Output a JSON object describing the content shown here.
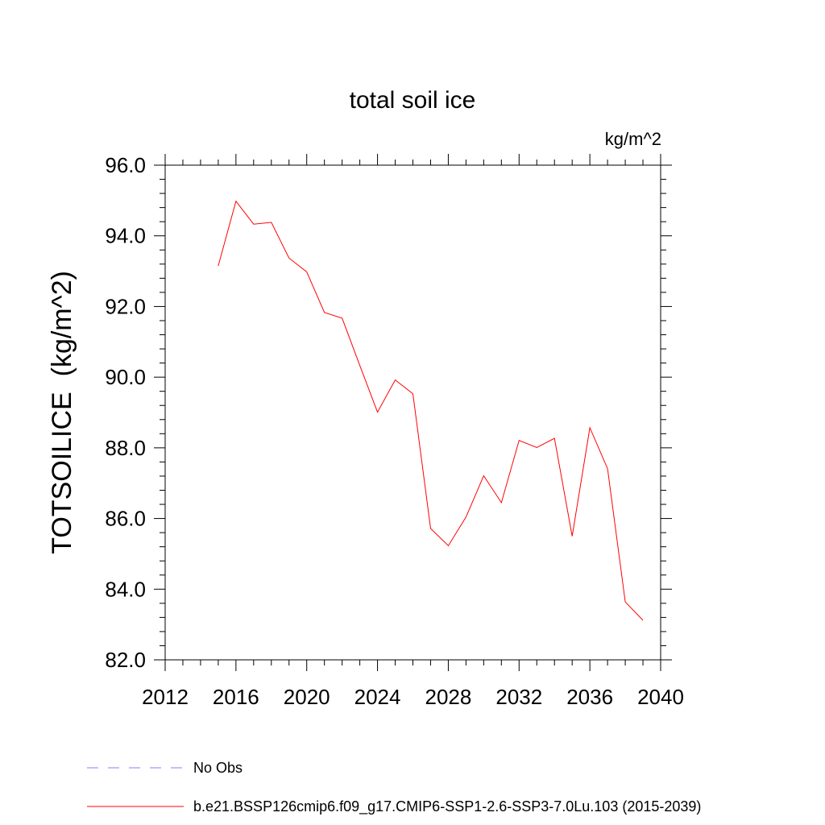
{
  "chart_data": {
    "type": "line",
    "title": "total soil ice",
    "units_label": "kg/m^2",
    "ylabel": "TOTSOILICE  (kg/m^2)",
    "xlabel": "",
    "xlim": [
      2012,
      2040
    ],
    "ylim": [
      82.0,
      96.0
    ],
    "xticks": [
      "2012",
      "2016",
      "2020",
      "2024",
      "2028",
      "2032",
      "2036",
      "2040"
    ],
    "yticks": [
      "82.0",
      "84.0",
      "86.0",
      "88.0",
      "90.0",
      "92.0",
      "94.0",
      "96.0"
    ],
    "grid": false,
    "legend_placement": "bottom",
    "series": [
      {
        "name": "b.e21.BSSP126cmip6.f09_g17.CMIP6-SSP1-2.6-SSP3-7.0Lu.103 (2015-2039)",
        "color": "#ff0000",
        "x": [
          2015,
          2016,
          2017,
          2018,
          2019,
          2020,
          2021,
          2022,
          2023,
          2024,
          2025,
          2026,
          2027,
          2028,
          2029,
          2030,
          2031,
          2032,
          2033,
          2034,
          2035,
          2036,
          2037,
          2038,
          2039
        ],
        "values": [
          93.15,
          94.98,
          94.33,
          94.38,
          93.37,
          92.98,
          91.83,
          91.67,
          90.33,
          89.01,
          89.92,
          89.53,
          85.72,
          85.23,
          86.04,
          87.21,
          86.45,
          88.21,
          88.01,
          88.27,
          85.5,
          88.57,
          87.41,
          83.64,
          83.12
        ]
      }
    ],
    "legend": [
      {
        "label": "No Obs",
        "style": "dashed",
        "color": "#8080ff"
      },
      {
        "label": "b.e21.BSSP126cmip6.f09_g17.CMIP6-SSP1-2.6-SSP3-7.0Lu.103 (2015-2039)",
        "style": "solid",
        "color": "#ff0000"
      }
    ]
  }
}
